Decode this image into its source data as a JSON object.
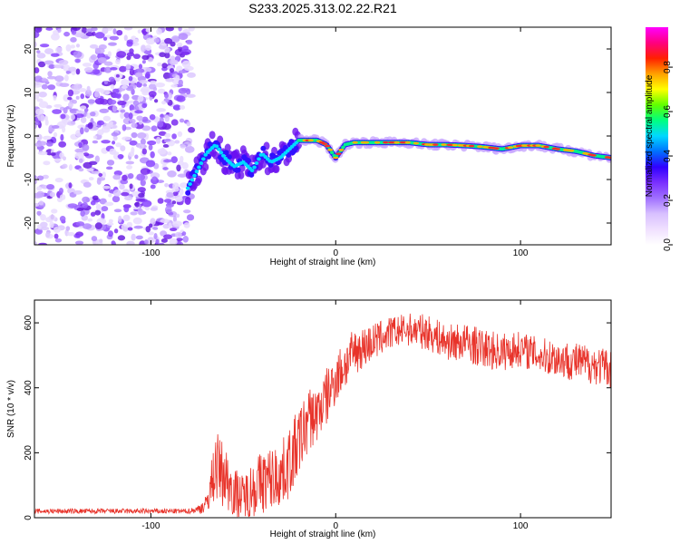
{
  "title": "S233.2025.313.02.22.R21",
  "chart_data": [
    {
      "type": "heatmap",
      "name": "spectrogram",
      "xlabel": "Height of straight line (km)",
      "ylabel": "Frequency (Hz)",
      "xlim": [
        -163,
        149
      ],
      "ylim": [
        -25,
        25
      ],
      "xticks": [
        -100,
        0,
        100
      ],
      "xtick_labels": [
        "-100",
        "0",
        "100"
      ],
      "yticks": [
        -20,
        -10,
        0,
        10,
        20
      ],
      "ytick_labels": [
        "-20",
        "-10",
        "0",
        "10",
        "20"
      ],
      "noise_region_x": [
        -163,
        -80
      ],
      "trace": {
        "x": [
          -80,
          -75,
          -70,
          -65,
          -60,
          -55,
          -50,
          -45,
          -40,
          -35,
          -30,
          -25,
          -20,
          -15,
          -10,
          -5,
          0,
          5,
          10,
          20,
          30,
          40,
          50,
          60,
          70,
          80,
          90,
          100,
          110,
          120,
          130,
          140,
          149
        ],
        "freq": [
          -12,
          -8,
          -4,
          -2,
          -5,
          -7,
          -6,
          -8,
          -4,
          -6,
          -5,
          -3,
          -1,
          -1,
          -1,
          -2,
          -5,
          -2,
          -1.5,
          -1.5,
          -1.5,
          -1.5,
          -2,
          -2,
          -2.2,
          -2.5,
          -3,
          -2.2,
          -2.2,
          -3,
          -3.5,
          -4.5,
          -5
        ]
      },
      "colorbar": {
        "label": "Normalized spectral amplitude",
        "ticks": [
          0.0,
          0.2,
          0.4,
          0.6,
          0.8
        ],
        "tick_labels": [
          "0.0",
          "0.2",
          "0.4",
          "0.6",
          "0.8"
        ],
        "range": [
          0,
          0.98
        ],
        "colors": [
          "#ffffff",
          "#f0e0ff",
          "#d8c0ff",
          "#a070ff",
          "#7a30ff",
          "#3000ff",
          "#0070ff",
          "#00d8ff",
          "#00ff80",
          "#60ff00",
          "#ffff00",
          "#ffa000",
          "#ff2000",
          "#ff0080",
          "#ff00ff"
        ]
      }
    },
    {
      "type": "line",
      "name": "snr",
      "xlabel": "Height of straight line (km)",
      "ylabel": "SNR (10 * v/v)",
      "xlim": [
        -163,
        149
      ],
      "ylim": [
        0,
        670
      ],
      "xticks": [
        -100,
        0,
        100
      ],
      "xtick_labels": [
        "-100",
        "0",
        "100"
      ],
      "yticks": [
        0,
        200,
        400,
        600
      ],
      "ytick_labels": [
        "0",
        "200",
        "400",
        "600"
      ],
      "color": "#e8332a",
      "envelope": {
        "x": [
          -163,
          -80,
          -75,
          -70,
          -65,
          -60,
          -55,
          -50,
          -45,
          -40,
          -35,
          -30,
          -25,
          -20,
          -15,
          -10,
          -5,
          0,
          5,
          10,
          20,
          30,
          40,
          50,
          60,
          70,
          80,
          90,
          100,
          110,
          120,
          130,
          140,
          149
        ],
        "mean": [
          20,
          20,
          25,
          40,
          160,
          130,
          80,
          60,
          90,
          110,
          120,
          130,
          170,
          230,
          300,
          320,
          370,
          430,
          470,
          510,
          540,
          570,
          580,
          570,
          540,
          540,
          520,
          510,
          520,
          500,
          490,
          480,
          470,
          460
        ],
        "spread": [
          8,
          8,
          12,
          30,
          110,
          100,
          80,
          70,
          90,
          100,
          100,
          100,
          110,
          110,
          100,
          90,
          90,
          80,
          80,
          70,
          60,
          50,
          50,
          55,
          55,
          60,
          60,
          60,
          55,
          55,
          60,
          60,
          60,
          60
        ]
      }
    }
  ]
}
